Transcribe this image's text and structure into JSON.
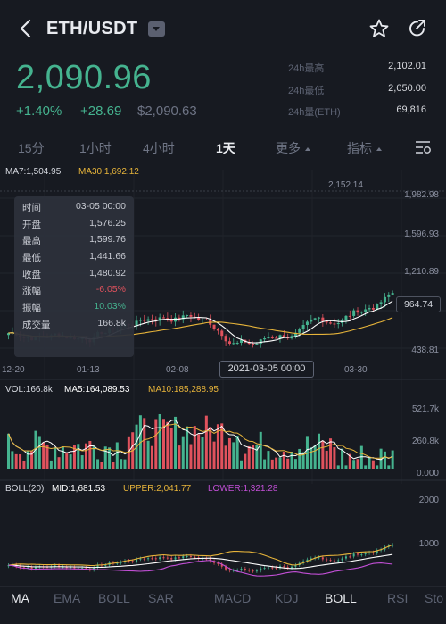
{
  "header": {
    "pair": "ETH/USDT",
    "icons": [
      "back-icon",
      "dropdown-icon",
      "star-icon",
      "share-icon"
    ]
  },
  "ticker": {
    "price": "2,090.96",
    "change_pct": "+1.40%",
    "change_abs": "+28.69",
    "price_usd": "$2,090.63",
    "stats": [
      {
        "label": "24h最高",
        "value": "2,102.01"
      },
      {
        "label": "24h最低",
        "value": "2,050.00"
      },
      {
        "label": "24h量(ETH)",
        "value": "69,816"
      }
    ]
  },
  "timeframes": [
    {
      "label": "15分"
    },
    {
      "label": "1小时"
    },
    {
      "label": "4小时"
    },
    {
      "label": "1天"
    },
    {
      "label": "更多"
    },
    {
      "label": "指标"
    }
  ],
  "active_timeframe": "1天",
  "main_indicators": {
    "ma7": "MA7:1,504.95",
    "ma30": "MA30:1,692.12"
  },
  "price_axis": [
    "1,982.98",
    "1,596.93",
    "1,210.89",
    "438.81"
  ],
  "high_marker": "2,152.14",
  "crosshair_price": "964.74",
  "crosshair_date": "2021-03-05 00:00",
  "date_axis": [
    "12-20",
    "01-13",
    "02-08",
    "03-30"
  ],
  "tooltip": [
    {
      "k": "时间",
      "v": "03-05 00:00"
    },
    {
      "k": "开盘",
      "v": "1,576.25"
    },
    {
      "k": "最高",
      "v": "1,599.76"
    },
    {
      "k": "最低",
      "v": "1,441.66"
    },
    {
      "k": "收盘",
      "v": "1,480.92"
    },
    {
      "k": "涨幅",
      "v": "-6.05%"
    },
    {
      "k": "振幅",
      "v": "10.03%"
    },
    {
      "k": "成交量",
      "v": "166.8k"
    }
  ],
  "vol_indicators": {
    "vol": "VOL:166.8k",
    "ma5": "MA5:164,089.53",
    "ma10": "MA10:185,288.95"
  },
  "vol_axis": [
    "521.7k",
    "260.8k",
    "0.000"
  ],
  "boll_indicators": {
    "label": "BOLL(20)",
    "mid": "MID:1,681.53",
    "upper": "UPPER:2,041.77",
    "lower": "LOWER:1,321.28"
  },
  "boll_axis": [
    "2000",
    "1000"
  ],
  "bottom_tabs": [
    "MA",
    "EMA",
    "BOLL",
    "SAR",
    "MACD",
    "KDJ",
    "BOLL",
    "RSI",
    "Sto"
  ],
  "colors": {
    "up": "#45b38f",
    "down": "#e0525d",
    "ma7": "#ffffff",
    "ma30": "#e7b43a",
    "lower": "#c24fd6"
  }
}
